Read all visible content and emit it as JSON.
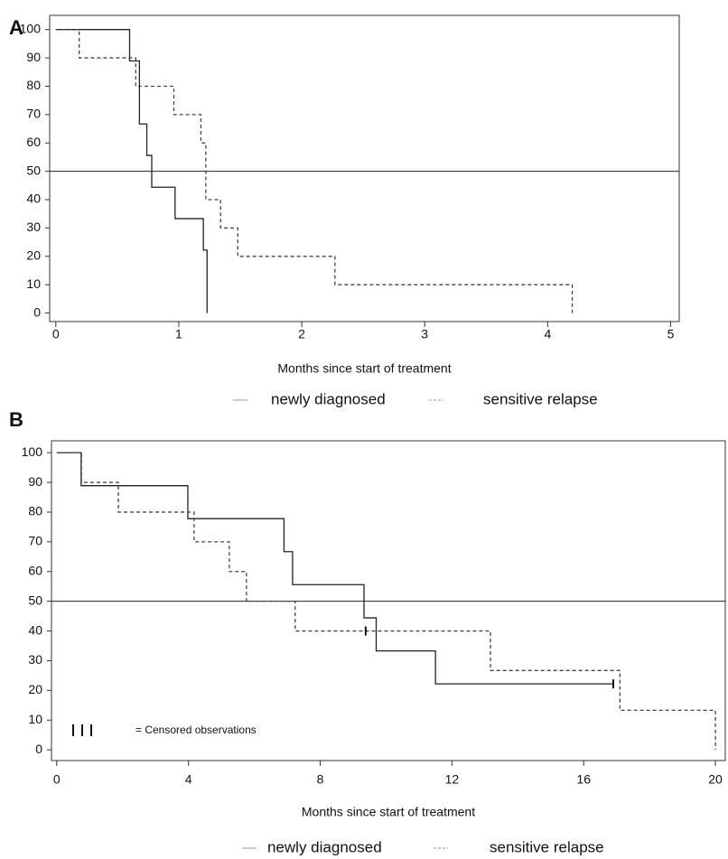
{
  "chart_data": [
    {
      "type": "line",
      "step": "post",
      "panel": "A",
      "xlabel": "Months since start of treatment",
      "xlim": [
        -0.05,
        5.07
      ],
      "ylim": [
        -3,
        105
      ],
      "xticks": [
        0,
        1,
        2,
        3,
        4,
        5
      ],
      "yticks": [
        0,
        10,
        20,
        30,
        40,
        50,
        60,
        70,
        80,
        90,
        100
      ],
      "hline": 50,
      "series": [
        {
          "name": "newly diagnosed",
          "color": "#222222",
          "dash": "solid",
          "x": [
            0,
            0.6,
            0.68,
            0.74,
            0.78,
            0.97,
            1.2,
            1.23
          ],
          "values": [
            100,
            88.9,
            66.7,
            55.6,
            44.4,
            33.3,
            22.2,
            0
          ]
        },
        {
          "name": "sensitive relapse",
          "color": "#444444",
          "dash": "dashed",
          "x": [
            0,
            0.19,
            0.65,
            0.96,
            1.18,
            1.22,
            1.34,
            1.48,
            2.27,
            4.2
          ],
          "values": [
            100,
            90,
            80,
            70,
            60,
            40,
            30,
            20,
            10,
            0
          ]
        }
      ]
    },
    {
      "type": "line",
      "step": "post",
      "panel": "B",
      "xlabel": "Months since start of treatment",
      "xlim": [
        -0.16,
        20.3
      ],
      "ylim": [
        -3.6,
        104
      ],
      "xticks": [
        0,
        4,
        8,
        12,
        16,
        20
      ],
      "yticks": [
        0,
        10,
        20,
        30,
        40,
        50,
        60,
        70,
        80,
        90,
        100
      ],
      "hline": 50,
      "censored_note": "= Censored observations",
      "series": [
        {
          "name": "newly diagnosed",
          "color": "#222222",
          "dash": "solid",
          "x": [
            0,
            0.74,
            3.98,
            6.9,
            7.16,
            9.33,
            9.7,
            11.5,
            16.9
          ],
          "values": [
            100,
            88.9,
            77.8,
            66.7,
            55.6,
            44.4,
            33.3,
            22.2,
            22.2
          ],
          "censored_x": [
            16.9
          ],
          "censored_y": [
            22.2
          ]
        },
        {
          "name": "sensitive relapse",
          "color": "#444444",
          "dash": "dashed",
          "x": [
            0,
            0.75,
            1.87,
            4.17,
            5.24,
            5.76,
            7.24,
            13.17,
            17.1,
            20.0
          ],
          "values": [
            100,
            90,
            80,
            70,
            60,
            50,
            40,
            26.7,
            13.3,
            0
          ],
          "censored_x": [
            9.38
          ],
          "censored_y": [
            40
          ]
        }
      ]
    }
  ]
}
